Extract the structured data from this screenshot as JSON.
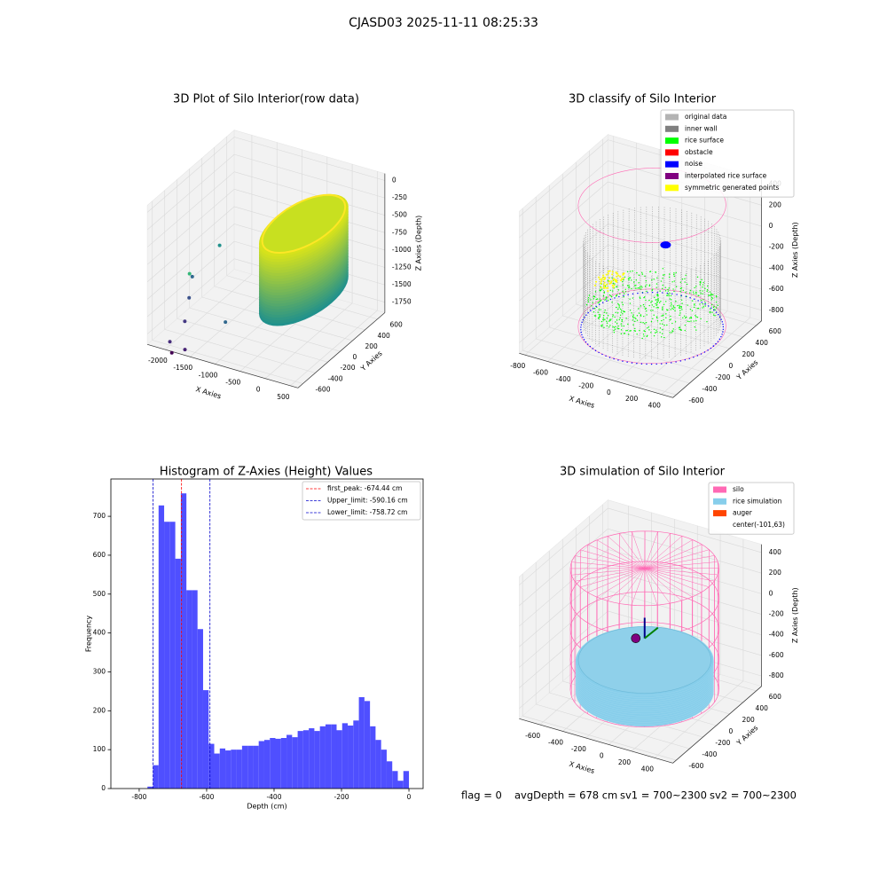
{
  "title": "CJASD03 2025-11-11 08:25:33",
  "chart_data": [
    {
      "type": "scatter3d",
      "title": "3D Plot of Silo Interior(row data)",
      "xlabel": "X Axies",
      "ylabel": "Y Axies",
      "zlabel": "Z Axies (Depth)",
      "xlim": [
        -2350,
        650
      ],
      "ylim": [
        -680,
        720
      ],
      "zlim": [
        -1900,
        100
      ],
      "xticks": [
        -2000,
        -1500,
        -1000,
        -500,
        0,
        500
      ],
      "yticks": [
        -600,
        -400,
        -200,
        0,
        200,
        400,
        600
      ],
      "zticks": [
        -1750,
        -1500,
        -1250,
        -1000,
        -750,
        -500,
        -250,
        0
      ]
    },
    {
      "type": "scatter3d",
      "title": "3D classify of Silo Interior",
      "xlabel": "X Axies",
      "ylabel": "Y Axies",
      "zlabel": "Z Axies (Depth)",
      "xlim": [
        -850,
        500
      ],
      "ylim": [
        -650,
        680
      ],
      "zlim": [
        -900,
        450
      ],
      "xticks": [
        -800,
        -600,
        -400,
        -200,
        0,
        200,
        400
      ],
      "yticks": [
        -600,
        -400,
        -200,
        0,
        200,
        400,
        600
      ],
      "zticks": [
        -800,
        -600,
        -400,
        -200,
        0,
        200,
        400
      ],
      "legend": [
        {
          "name": "original data",
          "color": "#b3b3b3"
        },
        {
          "name": "inner wall",
          "color": "#808080"
        },
        {
          "name": "rice surface",
          "color": "#00ff00"
        },
        {
          "name": "obstacle",
          "color": "#ff0000"
        },
        {
          "name": "noise",
          "color": "#0000ff"
        },
        {
          "name": "interpolated rice surface",
          "color": "#800080"
        },
        {
          "name": "symmetric generated points",
          "color": "#ffff00"
        }
      ]
    },
    {
      "type": "histogram",
      "title": "Histogram of Z-Axies (Height) Values",
      "xlabel": "Depth (cm)",
      "ylabel": "Frequency",
      "color": "#4f4fff",
      "xlim": [
        -884,
        42
      ],
      "ylim": [
        0,
        796
      ],
      "xticks": [
        -800,
        -600,
        -400,
        -200,
        0
      ],
      "yticks": [
        0,
        100,
        200,
        300,
        400,
        500,
        600,
        700
      ],
      "bins": [
        -775.5,
        -759,
        -742.5,
        -726,
        -709.5,
        -693,
        -676.5,
        -660,
        -643.5,
        -627,
        -610.5,
        -594,
        -577.5,
        -561,
        -544.5,
        -528,
        -511.5,
        -495,
        -478.5,
        -462,
        -445.5,
        -429,
        -412.5,
        -396,
        -379.5,
        -363,
        -346.5,
        -330,
        -313.5,
        -297,
        -280.5,
        -264,
        -247.5,
        -231,
        -214.5,
        -198,
        -181.5,
        -165,
        -148.5,
        -132,
        -115.5,
        -99,
        -82.5,
        -66,
        -49.5,
        -33,
        -16.5,
        0
      ],
      "values": [
        5,
        60,
        728,
        686,
        686,
        591,
        759,
        510,
        510,
        410,
        253,
        115,
        90,
        103,
        98,
        100,
        100,
        110,
        110,
        110,
        122,
        125,
        130,
        128,
        130,
        138,
        132,
        148,
        150,
        155,
        148,
        160,
        165,
        165,
        150,
        168,
        162,
        175,
        235,
        225,
        160,
        125,
        100,
        70,
        45,
        20,
        45
      ],
      "vlines": [
        {
          "value": -674.44,
          "label": "first_peak: -674.44 cm",
          "color": "#ff0000"
        },
        {
          "value": -590.16,
          "label": "Upper_limit: -590.16 cm",
          "color": "#0000cc"
        },
        {
          "value": -758.72,
          "label": "Lower_limit: -758.72 cm",
          "color": "#0000cc"
        }
      ]
    },
    {
      "type": "surface3d",
      "title": "3D simulation of Silo Interior",
      "xlabel": "X Axies",
      "ylabel": "Y Axies",
      "zlabel": "Z Axies (Depth)",
      "xlim": [
        -780,
        560
      ],
      "ylim": [
        -650,
        680
      ],
      "zlim": [
        -900,
        480
      ],
      "xticks": [
        -600,
        -400,
        -200,
        0,
        200,
        400
      ],
      "yticks": [
        -600,
        -400,
        -200,
        0,
        200,
        400,
        600
      ],
      "zticks": [
        -800,
        -600,
        -400,
        -200,
        0,
        200,
        400
      ],
      "legend": [
        {
          "name": "silo",
          "color": "#ff69b4"
        },
        {
          "name": "rice simulation",
          "color": "#87ceeb"
        },
        {
          "name": "auger",
          "color": "#ff4500"
        },
        {
          "name": "center(-101,63)"
        }
      ]
    }
  ],
  "footer": [
    "flag = 0",
    "avgDepth = 678 cm",
    "sv1 = 700~2300",
    "sv2 = 700~2300"
  ]
}
